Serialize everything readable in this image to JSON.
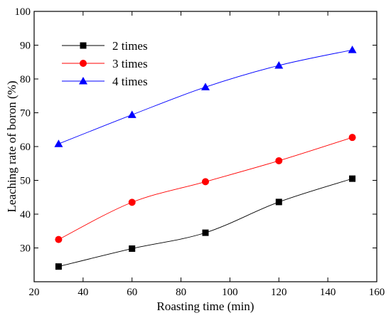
{
  "chart_data": {
    "type": "line",
    "title": "",
    "xlabel": "Roasting time (min)",
    "ylabel": "Leaching rate of boron (%)",
    "xlim": [
      20,
      160
    ],
    "ylim": [
      20,
      100
    ],
    "x_ticks": [
      20,
      40,
      60,
      80,
      100,
      120,
      140,
      160
    ],
    "y_ticks": [
      30,
      40,
      50,
      60,
      70,
      80,
      90,
      100
    ],
    "x_tick_labels": [
      "20",
      "40",
      "60",
      "80",
      "100",
      "120",
      "140",
      "160"
    ],
    "y_tick_labels": [
      "30",
      "40",
      "50",
      "60",
      "70",
      "80",
      "90",
      "100"
    ],
    "grid": false,
    "legend_position": "top-left",
    "x": [
      30,
      60,
      90,
      120,
      150
    ],
    "series": [
      {
        "name": "2 times",
        "values": [
          24.5,
          29.8,
          34.5,
          43.6,
          50.5
        ],
        "color": "#000000",
        "marker": "square"
      },
      {
        "name": "3 times",
        "values": [
          32.5,
          43.5,
          49.6,
          55.8,
          62.7
        ],
        "color": "#ff0000",
        "marker": "circle"
      },
      {
        "name": "4 times",
        "values": [
          60.8,
          69.4,
          77.6,
          84.0,
          88.6
        ],
        "color": "#0000ff",
        "marker": "triangle"
      }
    ]
  }
}
